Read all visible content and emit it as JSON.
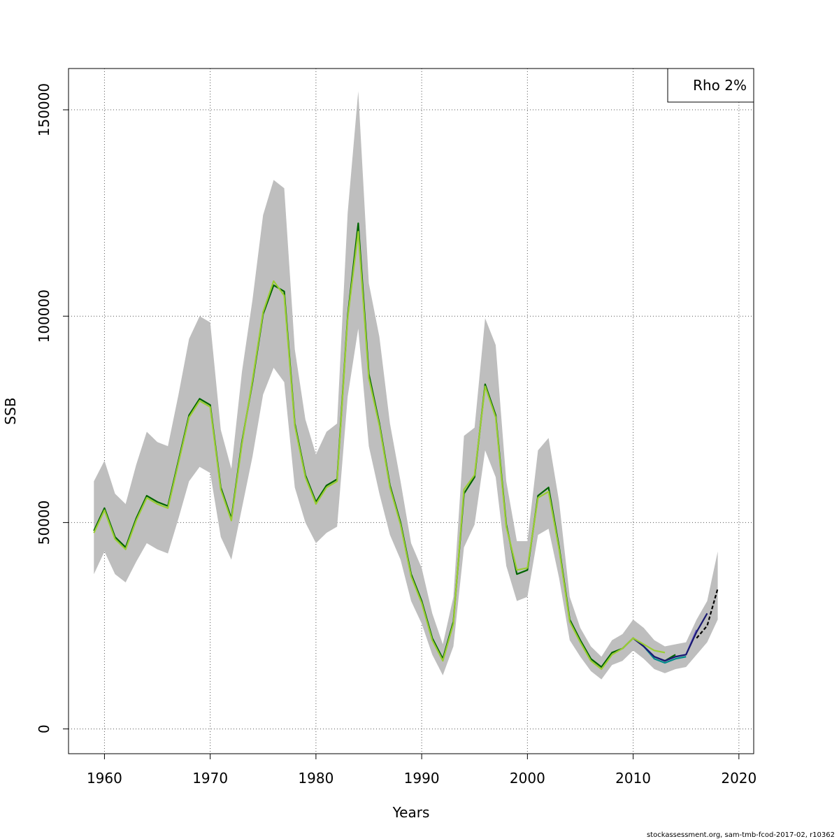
{
  "chart_data": {
    "type": "line",
    "title": "",
    "xlabel": "Years",
    "ylabel": "SSB",
    "xlim": [
      1956.6,
      2021.4
    ],
    "ylim": [
      -6000,
      160000
    ],
    "x_ticks": [
      1960,
      1970,
      1980,
      1990,
      2000,
      2010,
      2020
    ],
    "y_ticks": [
      0,
      50000,
      100000,
      150000
    ],
    "grid": true,
    "legend": {
      "position": "top-right",
      "entries": [
        "Rho 2%"
      ]
    },
    "band": {
      "name": "confidence interval",
      "color": "#bebebe",
      "years": [
        1959,
        1960,
        1961,
        1962,
        1963,
        1964,
        1965,
        1966,
        1967,
        1968,
        1969,
        1970,
        1971,
        1972,
        1973,
        1974,
        1975,
        1976,
        1977,
        1978,
        1979,
        1980,
        1981,
        1982,
        1983,
        1984,
        1985,
        1986,
        1987,
        1988,
        1989,
        1990,
        1991,
        1992,
        1993,
        1994,
        1995,
        1996,
        1997,
        1998,
        1999,
        2000,
        2001,
        2002,
        2003,
        2004,
        2005,
        2006,
        2007,
        2008,
        2009,
        2010,
        2011,
        2012,
        2013,
        2014,
        2015,
        2016,
        2017,
        2018
      ],
      "upper": [
        60000,
        65000,
        57000,
        54500,
        64000,
        72000,
        69500,
        68500,
        81000,
        94500,
        100000,
        98500,
        72500,
        63000,
        86500,
        104000,
        124500,
        133000,
        131000,
        92000,
        75000,
        66500,
        72000,
        74000,
        125000,
        154500,
        108000,
        95000,
        74000,
        60000,
        45000,
        39000,
        28000,
        20500,
        32000,
        71000,
        73000,
        99500,
        93000,
        60000,
        45500,
        45500,
        67500,
        70500,
        55000,
        32000,
        24500,
        20000,
        17500,
        21500,
        23000,
        26500,
        24500,
        21500,
        20000,
        20500,
        21000,
        26500,
        31000,
        43000
      ],
      "lower": [
        37500,
        43000,
        37500,
        35500,
        40500,
        45000,
        43500,
        42500,
        51000,
        60000,
        63500,
        62000,
        46500,
        41000,
        53500,
        66000,
        81000,
        87500,
        84000,
        58500,
        50000,
        45000,
        47500,
        49000,
        80500,
        97000,
        68500,
        57000,
        47000,
        41000,
        31000,
        25500,
        18000,
        13000,
        20000,
        44000,
        49500,
        67500,
        61000,
        39500,
        31000,
        32000,
        47000,
        48500,
        36500,
        21500,
        17500,
        14000,
        12000,
        15500,
        16500,
        19000,
        17000,
        14500,
        13500,
        14500,
        15000,
        18000,
        21000,
        26500
      ]
    },
    "series": [
      {
        "color": "#006400",
        "x": [
          1959,
          1960,
          1961,
          1962,
          1963,
          1964,
          1965,
          1966,
          1967,
          1968,
          1969,
          1970,
          1971,
          1972,
          1973,
          1974,
          1975,
          1976,
          1977,
          1978,
          1979,
          1980,
          1981,
          1982,
          1983,
          1984,
          1985,
          1986,
          1987,
          1988,
          1989,
          1990,
          1991,
          1992,
          1993,
          1994,
          1995,
          1996,
          1997,
          1998,
          1999,
          2000,
          2001,
          2002,
          2003,
          2004,
          2005,
          2006,
          2007,
          2008,
          2009,
          2010,
          2011,
          2012,
          2013,
          2014
        ],
        "y": [
          48000,
          53500,
          46500,
          44000,
          51000,
          56500,
          55000,
          54000,
          65000,
          76000,
          80000,
          78500,
          58500,
          51000,
          69500,
          84000,
          100500,
          107500,
          106000,
          74000,
          61500,
          55000,
          59000,
          60500,
          100000,
          122500,
          86000,
          74000,
          59000,
          50000,
          37500,
          31000,
          22000,
          17000,
          26000,
          57000,
          61000,
          83500,
          76000,
          49500,
          37500,
          38500,
          56500,
          58500,
          44000,
          26500,
          21500,
          17000,
          15000,
          18500,
          19500,
          22000,
          20000,
          17500,
          16500,
          18000
        ]
      },
      {
        "color": "#008b8b",
        "x": [
          2010,
          2011,
          2012,
          2013,
          2014,
          2015
        ],
        "y": [
          22000,
          20000,
          17000,
          16000,
          17000,
          17500
        ]
      },
      {
        "color": "#6a5acd",
        "x": [
          2010,
          2011,
          2012,
          2013,
          2014,
          2015,
          2016
        ],
        "y": [
          22000,
          20000,
          17500,
          16500,
          17500,
          18000,
          24000
        ]
      },
      {
        "color": "#191970",
        "x": [
          2010,
          2011,
          2012,
          2013,
          2014,
          2015,
          2016,
          2017
        ],
        "y": [
          22000,
          20000,
          17500,
          16500,
          17500,
          18000,
          23500,
          28000
        ]
      },
      {
        "color": "#9acd32",
        "x": [
          1959,
          1960,
          1961,
          1962,
          1963,
          1964,
          1965,
          1966,
          1967,
          1968,
          1969,
          1970,
          1971,
          1972,
          1973,
          1974,
          1975,
          1976,
          1977,
          1978,
          1979,
          1980,
          1981,
          1982,
          1983,
          1984,
          1985,
          1986,
          1987,
          1988,
          1989,
          1990,
          1991,
          1992,
          1993,
          1994,
          1995,
          1996,
          1997,
          1998,
          1999,
          2000,
          2001,
          2002,
          2003,
          2004,
          2005,
          2006,
          2007,
          2008,
          2009,
          2010,
          2011,
          2012,
          2013
        ],
        "y": [
          47500,
          53000,
          46000,
          43500,
          50500,
          56000,
          54500,
          53500,
          64500,
          75500,
          79500,
          78000,
          58000,
          50500,
          69000,
          84500,
          101000,
          108500,
          105000,
          73500,
          61000,
          54500,
          58500,
          60000,
          99500,
          120500,
          85000,
          73500,
          58500,
          49500,
          37000,
          30500,
          21500,
          16500,
          25500,
          58000,
          61500,
          83000,
          75500,
          49000,
          38500,
          39000,
          56000,
          57500,
          43500,
          26000,
          21000,
          16500,
          14500,
          18000,
          19500,
          22000,
          20500,
          19000,
          18500
        ]
      },
      {
        "color": "#000000",
        "dashed": true,
        "x": [
          2016,
          2017,
          2018
        ],
        "y": [
          22000,
          25000,
          34000
        ]
      }
    ]
  },
  "footer": {
    "text": "stockassessment.org, sam-tmb-fcod-2017-02, r10362"
  }
}
